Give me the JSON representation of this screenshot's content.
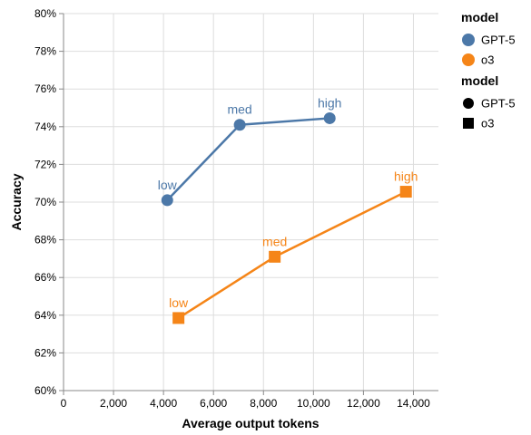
{
  "chart_data": {
    "type": "line",
    "xlabel": "Average output tokens",
    "ylabel": "Accuracy",
    "xlim": [
      0,
      15000
    ],
    "ylim": [
      60,
      80
    ],
    "x_ticks": [
      0,
      2000,
      4000,
      6000,
      8000,
      10000,
      12000,
      14000
    ],
    "x_tick_labels": [
      "0",
      "2,000",
      "4,000",
      "6,000",
      "8,000",
      "10,000",
      "12,000",
      "14,000"
    ],
    "y_ticks": [
      60,
      62,
      64,
      66,
      68,
      70,
      72,
      74,
      76,
      78,
      80
    ],
    "y_tick_labels": [
      "60%",
      "62%",
      "64%",
      "66%",
      "68%",
      "70%",
      "72%",
      "74%",
      "76%",
      "78%",
      "80%"
    ],
    "grid": true,
    "legend_placement": "right",
    "series": [
      {
        "name": "GPT-5",
        "color": "#4c78a8",
        "shape": "circle",
        "points": [
          {
            "x": 4150,
            "y": 70.1,
            "label": "low"
          },
          {
            "x": 7050,
            "y": 74.1,
            "label": "med"
          },
          {
            "x": 10650,
            "y": 74.45,
            "label": "high"
          }
        ]
      },
      {
        "name": "o3",
        "color": "#f58518",
        "shape": "square",
        "points": [
          {
            "x": 4600,
            "y": 63.85,
            "label": "low"
          },
          {
            "x": 8450,
            "y": 67.1,
            "label": "med"
          },
          {
            "x": 13700,
            "y": 70.55,
            "label": "high"
          }
        ]
      }
    ],
    "legends": [
      {
        "title": "model",
        "kind": "color",
        "items": [
          {
            "label": "GPT-5",
            "color": "#4c78a8"
          },
          {
            "label": "o3",
            "color": "#f58518"
          }
        ]
      },
      {
        "title": "model",
        "kind": "shape",
        "items": [
          {
            "label": "GPT-5",
            "shape": "circle"
          },
          {
            "label": "o3",
            "shape": "square"
          }
        ]
      }
    ]
  }
}
